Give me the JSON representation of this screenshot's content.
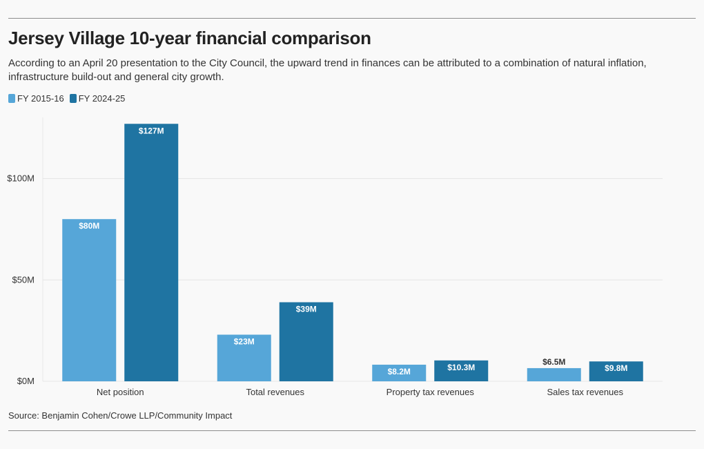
{
  "title": "Jersey Village 10-year financial comparison",
  "subtitle": "According to an April 20 presentation to the City Council, the upward trend in finances can be attributed to a combination of natural inflation, infrastructure build-out and general city growth.",
  "source": "Source: Benjamin Cohen/Crowe LLP/Community Impact",
  "colors": {
    "series_1": "#56a6d8",
    "series_2": "#1f74a2",
    "grid": "#e6e6e6",
    "text": "#333333"
  },
  "legend": [
    {
      "label": "FY 2015-16"
    },
    {
      "label": "FY 2024-25"
    }
  ],
  "chart_data": {
    "type": "bar",
    "title": "Jersey Village 10-year financial comparison",
    "xlabel": "",
    "ylabel": "",
    "categories": [
      "Net position",
      "Total revenues",
      "Property tax revenues",
      "Sales tax revenues"
    ],
    "series": [
      {
        "name": "FY 2015-16",
        "values": [
          80,
          23,
          8.2,
          6.5
        ],
        "labels": [
          "$80M",
          "$23M",
          "$8.2M",
          "$6.5M"
        ]
      },
      {
        "name": "FY 2024-25",
        "values": [
          127,
          39,
          10.3,
          9.8
        ],
        "labels": [
          "$127M",
          "$39M",
          "$10.3M",
          "$9.8M"
        ]
      }
    ],
    "ylim": [
      0,
      130
    ],
    "yticks": [
      0,
      50,
      100
    ],
    "ytick_labels": [
      "$0M",
      "$50M",
      "$100M"
    ],
    "grid": true,
    "legend_position": "top-left"
  }
}
